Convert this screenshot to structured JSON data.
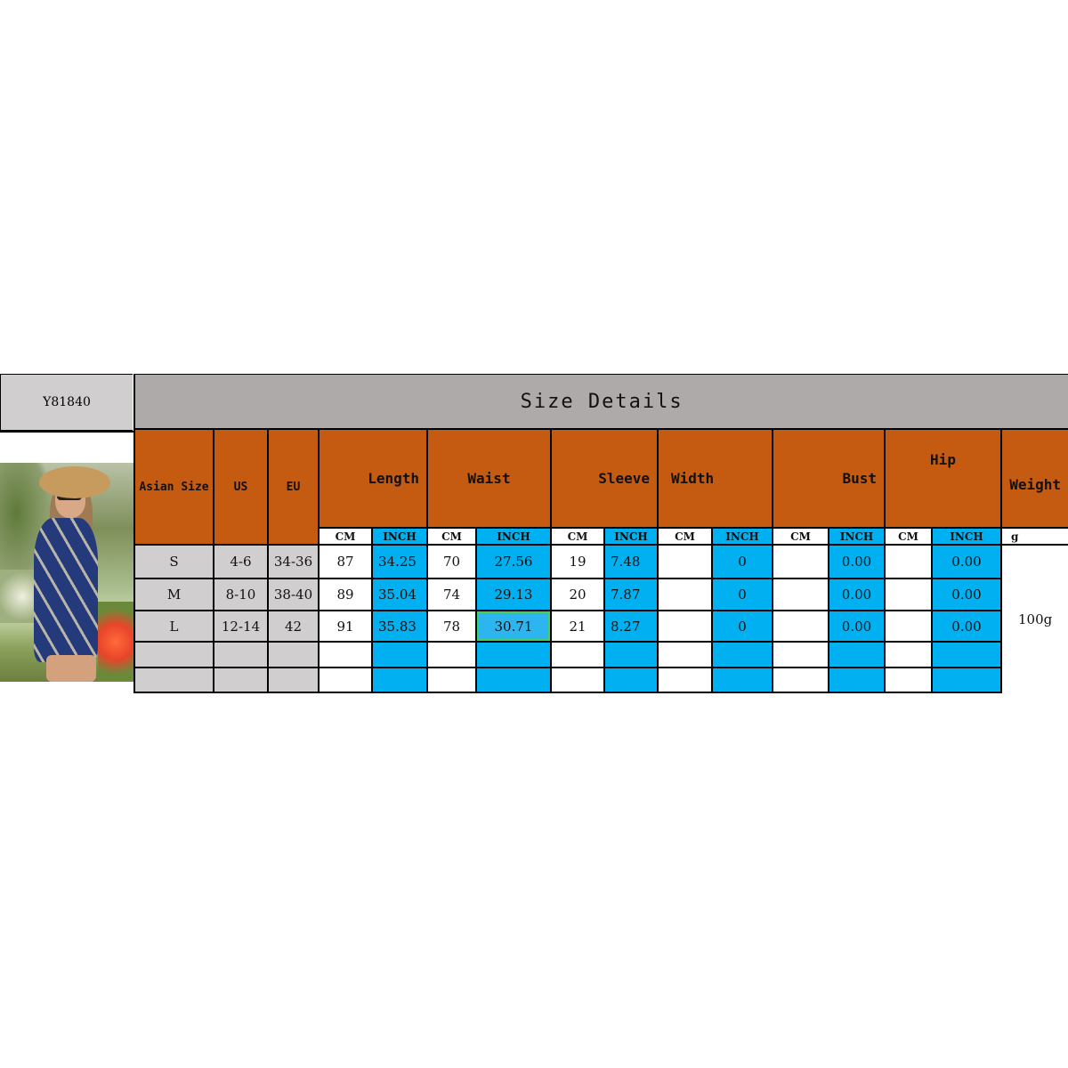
{
  "product_code": "Y81840",
  "title": "Size Details",
  "colors": {
    "header_orange": "#c55a11",
    "inch_blue": "#00b0f0",
    "title_gray": "#aeaaaa",
    "size_gray": "#d0cece"
  },
  "headers": {
    "asian_size": "Asian Size",
    "us": "US",
    "eu": "EU",
    "measures": [
      "Length",
      "Waist",
      "Sleeve",
      "Width",
      "Bust",
      "Hip"
    ],
    "weight": "Weight",
    "cm": "CM",
    "inch": "INCH",
    "weight_unit": "g"
  },
  "rows": [
    {
      "asian": "S",
      "us": "4-6",
      "eu": "34-36",
      "values": [
        [
          "87",
          "34.25"
        ],
        [
          "70",
          "27.56"
        ],
        [
          "19",
          "7.48"
        ],
        [
          "",
          "0"
        ],
        [
          "",
          "0.00"
        ],
        [
          "",
          "0.00"
        ]
      ]
    },
    {
      "asian": "M",
      "us": "8-10",
      "eu": "38-40",
      "values": [
        [
          "89",
          "35.04"
        ],
        [
          "74",
          "29.13"
        ],
        [
          "20",
          "7.87"
        ],
        [
          "",
          "0"
        ],
        [
          "",
          "0.00"
        ],
        [
          "",
          "0.00"
        ]
      ]
    },
    {
      "asian": "L",
      "us": "12-14",
      "eu": "42",
      "values": [
        [
          "91",
          "35.83"
        ],
        [
          "78",
          "30.71"
        ],
        [
          "21",
          "8.27"
        ],
        [
          "",
          "0"
        ],
        [
          "",
          "0.00"
        ],
        [
          "",
          "0.00"
        ]
      ]
    },
    {
      "asian": "",
      "us": "",
      "eu": "",
      "values": [
        [
          "",
          ""
        ],
        [
          "",
          ""
        ],
        [
          "",
          ""
        ],
        [
          "",
          ""
        ],
        [
          "",
          ""
        ],
        [
          "",
          ""
        ]
      ]
    },
    {
      "asian": "",
      "us": "",
      "eu": "",
      "values": [
        [
          "",
          ""
        ],
        [
          "",
          ""
        ],
        [
          "",
          ""
        ],
        [
          "",
          ""
        ],
        [
          "",
          ""
        ],
        [
          "",
          ""
        ]
      ]
    }
  ],
  "weight_value": "100g"
}
